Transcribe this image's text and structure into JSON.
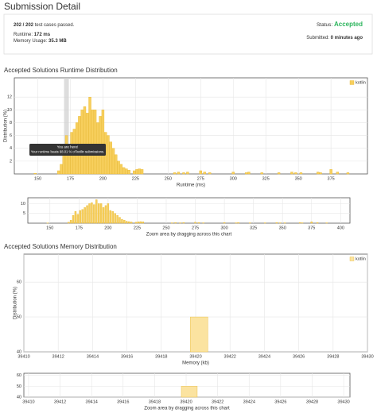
{
  "page": {
    "title": "Submission Detail",
    "cases": "202 / 202",
    "cases_text": "test cases passed.",
    "runtime_label": "Runtime:",
    "runtime": "172 ms",
    "memory_label": "Memory Usage:",
    "memory": "35.3 MB",
    "status_label": "Status:",
    "status": "Accepted",
    "submitted_label": "Submitted:",
    "submitted": "0 minutes ago"
  },
  "chart_data": [
    {
      "type": "bar",
      "title": "Accepted Solutions Runtime Distribution",
      "xlabel": "Runtime (ms)",
      "ylabel": "Distribution (%)",
      "x": [
        148,
        166,
        168,
        170,
        172,
        174,
        176,
        178,
        180,
        182,
        184,
        186,
        188,
        190,
        192,
        194,
        196,
        198,
        200,
        202,
        204,
        206,
        208,
        210,
        212,
        214,
        216,
        218,
        220,
        224,
        226,
        228,
        230,
        255,
        258,
        262,
        265,
        275,
        278,
        282,
        300,
        310,
        312,
        322,
        335,
        345,
        348,
        352,
        365,
        367,
        375,
        380,
        388
      ],
      "series": [
        {
          "name": "kotlin",
          "color": "#f7cf5d",
          "values": [
            0.1,
            0.5,
            1.5,
            4,
            6,
            4.5,
            6.5,
            7,
            8,
            9,
            10,
            10.5,
            9.5,
            12,
            10,
            10,
            8,
            9,
            10,
            6.5,
            6,
            5,
            4,
            3,
            2,
            1.5,
            1,
            0.8,
            0.6,
            0.5,
            0.7,
            0.8,
            0.7,
            0.2,
            0.3,
            0.2,
            0.3,
            0.5,
            0.3,
            0.2,
            0.3,
            0.2,
            0.3,
            0.2,
            0.2,
            0.3,
            0.2,
            0.2,
            0.3,
            0.2,
            0.7,
            0.3,
            0.2
          ]
        }
      ],
      "xlim": [
        132,
        403
      ],
      "xticks": [
        150,
        175,
        200,
        225,
        250,
        275,
        300,
        325,
        350,
        375
      ],
      "ylim": [
        0,
        15
      ],
      "yticks": [
        2,
        4,
        6,
        8,
        10,
        12
      ],
      "grid": true,
      "legend": "top-right",
      "highlight_x": 172,
      "annotation": {
        "title": "You are here!",
        "text": "Your runtime beats 98.01 % of kotlin submissions."
      }
    },
    {
      "type": "navigator",
      "xlabel": "Zoom area by dragging across this chart",
      "xlim": [
        131,
        408
      ],
      "xticks": [
        150,
        175,
        200,
        225,
        250,
        275,
        300,
        325,
        350,
        375,
        400
      ],
      "ylim": [
        0,
        13
      ],
      "yticks": [
        5,
        10
      ]
    },
    {
      "type": "bar",
      "title": "Accepted Solutions Memory Distribution",
      "xlabel": "Memory (kb)",
      "ylabel": "Distribution (%)",
      "x": [
        39420.2
      ],
      "series": [
        {
          "name": "kotlin",
          "color": "#fbe3a0",
          "values": [
            50
          ]
        }
      ],
      "xlim": [
        39410,
        39430
      ],
      "xticks": [
        39410,
        39412,
        39414,
        39416,
        39418,
        39420,
        39422,
        39424,
        39426,
        39428,
        39430
      ],
      "ylim": [
        40,
        68
      ],
      "yticks": [
        40,
        50,
        60
      ],
      "grid": true,
      "legend": "top-right"
    },
    {
      "type": "navigator",
      "xlabel": "Zoom area by dragging across this chart",
      "xlim": [
        39409.7,
        39430.4
      ],
      "xticks": [
        39410,
        39412,
        39414,
        39416,
        39418,
        39420,
        39422,
        39424,
        39426,
        39428,
        39430
      ],
      "ylim": [
        40,
        62
      ],
      "yticks": [
        40,
        50,
        60
      ]
    }
  ]
}
